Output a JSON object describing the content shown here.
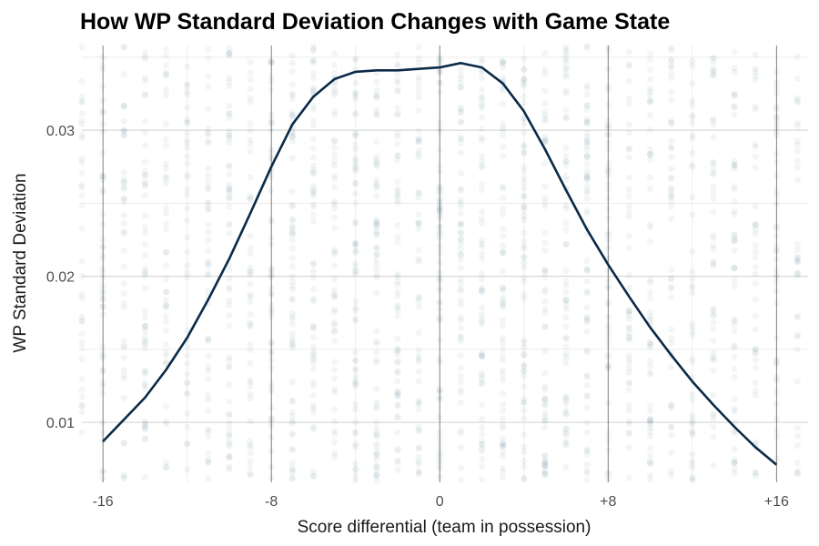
{
  "chart_data": {
    "type": "scatter",
    "title": "How WP Standard Deviation Changes with Game State",
    "xlabel": "Score differential (team in possession)",
    "ylabel": "WP Standard Deviation",
    "xlim": [
      -17,
      17.5
    ],
    "ylim": [
      0.0059,
      0.0358
    ],
    "x_ticks": [
      {
        "value": -16,
        "label": "-16"
      },
      {
        "value": -8,
        "label": "-8"
      },
      {
        "value": 0,
        "label": "0"
      },
      {
        "value": 8,
        "label": "+8"
      },
      {
        "value": 16,
        "label": "+16"
      }
    ],
    "y_ticks": [
      {
        "value": 0.01,
        "label": "0.01"
      },
      {
        "value": 0.02,
        "label": "0.02"
      },
      {
        "value": 0.03,
        "label": "0.03"
      }
    ],
    "y_minor_ticks": [
      0.015,
      0.025,
      0.035
    ],
    "grid": true,
    "colors": {
      "points": "#5a7a92",
      "line": "#0b2a47",
      "major_grid": "#cfcfcf",
      "minor_grid": "#ececec",
      "vline": "#2b2b2b"
    },
    "vertical_reference_lines": [
      -16,
      -8,
      0,
      8,
      16
    ],
    "scatter_columns": {
      "x": [
        -17,
        -16,
        -15,
        -14,
        -13,
        -12,
        -11,
        -10,
        -9,
        -8,
        -7,
        -6,
        -5,
        -4,
        -3,
        -2,
        -1,
        0,
        1,
        2,
        3,
        4,
        5,
        6,
        7,
        8,
        9,
        10,
        11,
        12,
        13,
        14,
        15,
        16,
        17
      ],
      "density": [
        0.35,
        0.6,
        0.5,
        0.7,
        0.5,
        0.45,
        0.6,
        0.8,
        0.55,
        0.7,
        0.95,
        0.85,
        0.7,
        0.9,
        0.95,
        0.85,
        0.7,
        1.0,
        0.8,
        0.85,
        0.9,
        0.9,
        0.8,
        0.85,
        0.95,
        0.7,
        0.6,
        0.75,
        0.6,
        0.5,
        0.55,
        0.65,
        0.45,
        0.5,
        0.35
      ],
      "y_range": [
        0.006,
        0.0358
      ]
    },
    "series": [
      {
        "type": "line",
        "x": [
          -16,
          -15,
          -14,
          -13,
          -12,
          -11,
          -10,
          -9,
          -8,
          -7,
          -6,
          -5,
          -4,
          -3,
          -2,
          -1,
          0,
          1,
          2,
          3,
          4,
          5,
          6,
          7,
          8,
          9,
          10,
          11,
          12,
          13,
          14,
          15,
          16
        ],
        "y": [
          0.0087,
          0.0102,
          0.0117,
          0.0136,
          0.0158,
          0.0184,
          0.0212,
          0.0243,
          0.0275,
          0.0304,
          0.0323,
          0.0335,
          0.034,
          0.0341,
          0.0341,
          0.0342,
          0.0343,
          0.0346,
          0.0343,
          0.0332,
          0.0313,
          0.0287,
          0.0259,
          0.0232,
          0.0208,
          0.0186,
          0.0165,
          0.0146,
          0.0128,
          0.0112,
          0.0097,
          0.0083,
          0.0071
        ]
      }
    ]
  }
}
